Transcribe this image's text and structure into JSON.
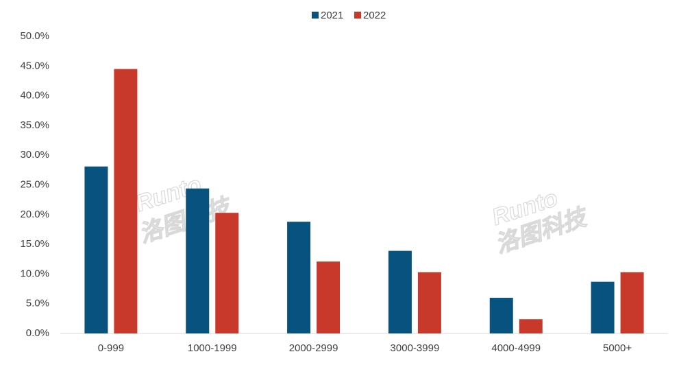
{
  "chart_data": {
    "type": "bar",
    "categories": [
      "0-999",
      "1000-1999",
      "2000-2999",
      "3000-3999",
      "4000-4999",
      "5000+"
    ],
    "series": [
      {
        "name": "2021",
        "color": "#07527f",
        "values": [
          28.1,
          24.4,
          18.8,
          13.9,
          6.0,
          8.7
        ]
      },
      {
        "name": "2022",
        "color": "#c8392b",
        "values": [
          44.5,
          20.3,
          12.1,
          10.3,
          2.4,
          10.3
        ]
      }
    ],
    "ylim": [
      0,
      50
    ],
    "yticks": [
      {
        "value": 0,
        "label": "0.0%"
      },
      {
        "value": 5,
        "label": "5.0%"
      },
      {
        "value": 10,
        "label": "10.0%"
      },
      {
        "value": 15,
        "label": "15.0%"
      },
      {
        "value": 20,
        "label": "20.0%"
      },
      {
        "value": 25,
        "label": "25.0%"
      },
      {
        "value": 30,
        "label": "30.0%"
      },
      {
        "value": 35,
        "label": "35.0%"
      },
      {
        "value": 40,
        "label": "40.0%"
      },
      {
        "value": 45,
        "label": "45.0%"
      },
      {
        "value": 50,
        "label": "50.0%"
      }
    ],
    "grid": false,
    "legend": "top",
    "watermark": [
      "Runto",
      "洛图科技"
    ]
  }
}
